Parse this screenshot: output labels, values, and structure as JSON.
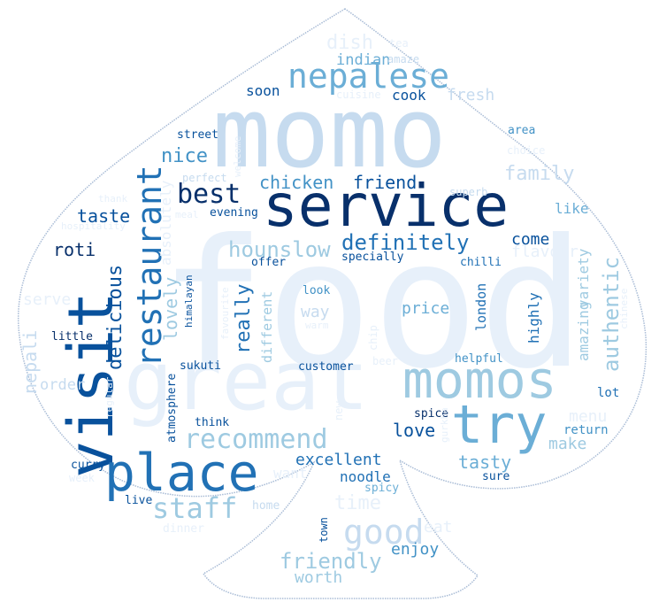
{
  "palette": {
    "background": "#ffffff",
    "outline": "#a9bcd6",
    "shades": [
      "#e7f0fa",
      "#c6dbef",
      "#9ecae1",
      "#6baed6",
      "#4292c6",
      "#2171b5",
      "#08519c",
      "#08306b"
    ]
  },
  "words": [
    {
      "text": "food",
      "shade": 0
    },
    {
      "text": "momo",
      "shade": 1
    },
    {
      "text": "service",
      "shade": 7
    },
    {
      "text": "visit",
      "shade": 6
    },
    {
      "text": "great",
      "shade": 0
    },
    {
      "text": "place",
      "shade": 5
    },
    {
      "text": "momos",
      "shade": 2
    },
    {
      "text": "try",
      "shade": 3
    },
    {
      "text": "restaurant",
      "shade": 5
    },
    {
      "text": "nepalese",
      "shade": 3
    },
    {
      "text": "best",
      "shade": 7
    },
    {
      "text": "recommend",
      "shade": 2
    },
    {
      "text": "good",
      "shade": 1
    },
    {
      "text": "staff",
      "shade": 2
    },
    {
      "text": "definitely",
      "shade": 5
    },
    {
      "text": "delicious",
      "shade": 6
    },
    {
      "text": "authentic",
      "shade": 2
    },
    {
      "text": "friendly",
      "shade": 2
    },
    {
      "text": "hounslow",
      "shade": 2
    },
    {
      "text": "nepali",
      "shade": 1
    },
    {
      "text": "really",
      "shade": 5
    },
    {
      "text": "lovely",
      "shade": 2
    },
    {
      "text": "chicken",
      "shade": 4
    },
    {
      "text": "friend",
      "shade": 6
    },
    {
      "text": "family",
      "shade": 1
    },
    {
      "text": "nice",
      "shade": 4
    },
    {
      "text": "taste",
      "shade": 6
    },
    {
      "text": "roti",
      "shade": 7
    },
    {
      "text": "dish",
      "shade": 0
    },
    {
      "text": "indian",
      "shade": 3
    },
    {
      "text": "soon",
      "shade": 6
    },
    {
      "text": "cook",
      "shade": 6
    },
    {
      "text": "fresh",
      "shade": 1
    },
    {
      "text": "absolutely",
      "shade": 0
    },
    {
      "text": "excellent",
      "shade": 5
    },
    {
      "text": "love",
      "shade": 6
    },
    {
      "text": "tasty",
      "shade": 3
    },
    {
      "text": "noodle",
      "shade": 5
    },
    {
      "text": "time",
      "shade": 0
    },
    {
      "text": "enjoy",
      "shade": 4
    },
    {
      "text": "worth",
      "shade": 2
    },
    {
      "text": "eat",
      "shade": 0
    },
    {
      "text": "menu",
      "shade": 0
    },
    {
      "text": "make",
      "shade": 2
    },
    {
      "text": "come",
      "shade": 6
    },
    {
      "text": "flavour",
      "shade": 0
    },
    {
      "text": "like",
      "shade": 3
    },
    {
      "text": "amazing",
      "shade": 2
    },
    {
      "text": "variety",
      "shade": 2
    },
    {
      "text": "highly",
      "shade": 5
    },
    {
      "text": "price",
      "shade": 3
    },
    {
      "text": "london",
      "shade": 5
    },
    {
      "text": "way",
      "shade": 1
    },
    {
      "text": "different",
      "shade": 2
    },
    {
      "text": "serve",
      "shade": 0
    },
    {
      "text": "order",
      "shade": 1
    },
    {
      "text": "want",
      "shade": 0
    },
    {
      "text": "tea",
      "shade": 0
    },
    {
      "text": "amaze",
      "shade": 1
    },
    {
      "text": "cuisine",
      "shade": 0
    },
    {
      "text": "area",
      "shade": 4
    },
    {
      "text": "choice",
      "shade": 0
    },
    {
      "text": "superb",
      "shade": 1
    },
    {
      "text": "street",
      "shade": 6
    },
    {
      "text": "welcome",
      "shade": 0
    },
    {
      "text": "perfect",
      "shade": 1
    },
    {
      "text": "thank",
      "shade": 0
    },
    {
      "text": "meal",
      "shade": 0
    },
    {
      "text": "evening",
      "shade": 6
    },
    {
      "text": "hospitality",
      "shade": 0
    },
    {
      "text": "offer",
      "shade": 6
    },
    {
      "text": "specially",
      "shade": 6
    },
    {
      "text": "chilli",
      "shade": 5
    },
    {
      "text": "look",
      "shade": 4
    },
    {
      "text": "warm",
      "shade": 0
    },
    {
      "text": "chinese",
      "shade": 0
    },
    {
      "text": "favourite",
      "shade": 0
    },
    {
      "text": "chip",
      "shade": 0
    },
    {
      "text": "little",
      "shade": 7
    },
    {
      "text": "himalayan",
      "shade": 6
    },
    {
      "text": "sukuti",
      "shade": 6
    },
    {
      "text": "customer",
      "shade": 6
    },
    {
      "text": "beer",
      "shade": 0
    },
    {
      "text": "helpful",
      "shade": 4
    },
    {
      "text": "lot",
      "shade": 5
    },
    {
      "text": "regular",
      "shade": 0
    },
    {
      "text": "atmosphere",
      "shade": 6
    },
    {
      "text": "new",
      "shade": 0
    },
    {
      "text": "think",
      "shade": 6
    },
    {
      "text": "spice",
      "shade": 7
    },
    {
      "text": "return",
      "shade": 4
    },
    {
      "text": "gurkha",
      "shade": 0
    },
    {
      "text": "curry",
      "shade": 6
    },
    {
      "text": "week",
      "shade": 0
    },
    {
      "text": "live",
      "shade": 6
    },
    {
      "text": "home",
      "shade": 1
    },
    {
      "text": "dinner",
      "shade": 0
    },
    {
      "text": "spicy",
      "shade": 3
    },
    {
      "text": "sure",
      "shade": 6
    },
    {
      "text": "town",
      "shade": 6
    }
  ]
}
